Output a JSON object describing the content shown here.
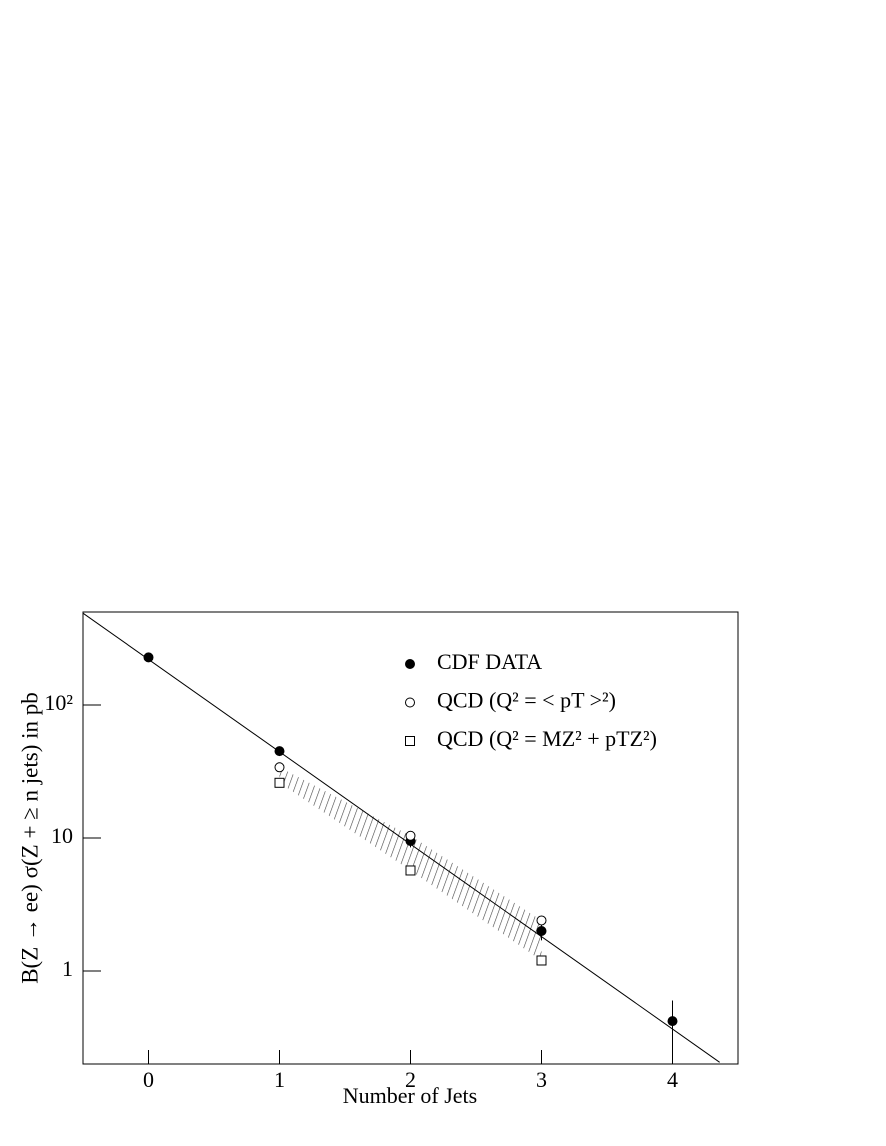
{
  "chart_data": {
    "type": "scatter",
    "x_label": "Number of Jets",
    "y_label": "B(Z → ee) σ(Z + ≥ n jets) in pb",
    "xlim": [
      -0.5,
      4.5
    ],
    "xticks": [
      0,
      1,
      2,
      3,
      4
    ],
    "ylim": [
      0.2,
      500
    ],
    "yticks": [
      1,
      10,
      {
        "value": 100,
        "label": "10²"
      }
    ],
    "log_y": true,
    "series": [
      {
        "name": "CDF DATA",
        "color": "#000000",
        "marker": "filled-circle",
        "x": [
          0,
          1,
          2,
          3,
          4
        ],
        "values": [
          228,
          45,
          9.5,
          2.0,
          0.42
        ],
        "errors": [
          null,
          null,
          1.0,
          0.3,
          0.18
        ]
      },
      {
        "name": "QCD (Q² = < pT >²)",
        "color": "#000000",
        "marker": "open-circle",
        "x": [
          1,
          2,
          3
        ],
        "values": [
          34,
          10.4,
          2.4
        ]
      },
      {
        "name": "QCD (Q² = MZ² + pTZ²)",
        "color": "#000000",
        "marker": "open-square",
        "x": [
          1,
          2,
          3
        ],
        "values": [
          26,
          5.7,
          1.2
        ]
      }
    ],
    "band_between": [
      1,
      2
    ],
    "fit_line": {
      "x": [
        -0.5,
        4.36
      ],
      "values": [
        490,
        0.206
      ]
    }
  }
}
